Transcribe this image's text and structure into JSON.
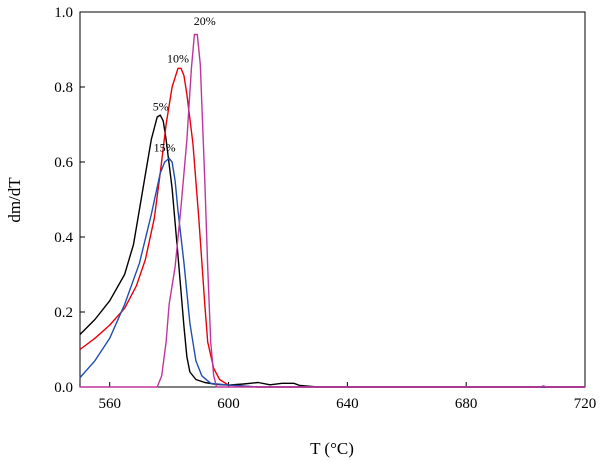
{
  "chart_data": {
    "type": "line",
    "xlabel": "T (°C)",
    "ylabel": "dm/dT",
    "xlim": [
      550,
      720
    ],
    "ylim": [
      0,
      1.0
    ],
    "x_ticks": [
      560,
      600,
      640,
      680,
      720
    ],
    "x_tick_labels": [
      "560",
      "600",
      "640",
      "680",
      "720"
    ],
    "y_ticks": [
      0.0,
      0.2,
      0.4,
      0.6,
      0.8,
      1.0
    ],
    "y_tick_labels": [
      "0.0",
      "0.2",
      "0.4",
      "0.6",
      "0.8",
      "1.0"
    ],
    "grid": false,
    "series": [
      {
        "name": "5%",
        "color": "#000000",
        "points": [
          [
            550,
            0.14
          ],
          [
            555,
            0.18
          ],
          [
            560,
            0.23
          ],
          [
            565,
            0.3
          ],
          [
            568,
            0.38
          ],
          [
            571,
            0.52
          ],
          [
            574,
            0.66
          ],
          [
            576,
            0.72
          ],
          [
            577,
            0.725
          ],
          [
            578,
            0.71
          ],
          [
            579,
            0.66
          ],
          [
            581,
            0.53
          ],
          [
            583,
            0.35
          ],
          [
            585,
            0.16
          ],
          [
            586,
            0.08
          ],
          [
            587,
            0.04
          ],
          [
            589,
            0.02
          ],
          [
            592,
            0.012
          ],
          [
            596,
            0.007
          ],
          [
            600,
            0.005
          ],
          [
            605,
            0.008
          ],
          [
            610,
            0.012
          ],
          [
            614,
            0.006
          ],
          [
            618,
            0.01
          ],
          [
            622,
            0.01
          ],
          [
            624,
            0.004
          ],
          [
            630,
            0.0
          ],
          [
            720,
            0.0
          ]
        ]
      },
      {
        "name": "10%",
        "color": "#e8000b",
        "points": [
          [
            550,
            0.1
          ],
          [
            555,
            0.13
          ],
          [
            560,
            0.165
          ],
          [
            565,
            0.21
          ],
          [
            569,
            0.27
          ],
          [
            572,
            0.34
          ],
          [
            575,
            0.45
          ],
          [
            577,
            0.57
          ],
          [
            579,
            0.7
          ],
          [
            581,
            0.8
          ],
          [
            583,
            0.85
          ],
          [
            584,
            0.85
          ],
          [
            585,
            0.83
          ],
          [
            586,
            0.78
          ],
          [
            588,
            0.65
          ],
          [
            590,
            0.45
          ],
          [
            592,
            0.22
          ],
          [
            593,
            0.12
          ],
          [
            595,
            0.05
          ],
          [
            597,
            0.02
          ],
          [
            600,
            0.005
          ],
          [
            610,
            0.0
          ],
          [
            720,
            0.0
          ]
        ]
      },
      {
        "name": "15%",
        "color": "#1f4fae",
        "points": [
          [
            550,
            0.025
          ],
          [
            555,
            0.07
          ],
          [
            560,
            0.13
          ],
          [
            565,
            0.22
          ],
          [
            570,
            0.33
          ],
          [
            574,
            0.46
          ],
          [
            577,
            0.57
          ],
          [
            578.5,
            0.6
          ],
          [
            580,
            0.61
          ],
          [
            581,
            0.6
          ],
          [
            582,
            0.55
          ],
          [
            583,
            0.47
          ],
          [
            585,
            0.33
          ],
          [
            587,
            0.17
          ],
          [
            589,
            0.07
          ],
          [
            591,
            0.03
          ],
          [
            594,
            0.01
          ],
          [
            600,
            0.005
          ],
          [
            610,
            0.0
          ],
          [
            720,
            0.0
          ]
        ]
      },
      {
        "name": "20%",
        "color": "#c0359c",
        "points": [
          [
            550,
            0.0
          ],
          [
            576,
            0.0
          ],
          [
            577.5,
            0.03
          ],
          [
            579,
            0.12
          ],
          [
            580,
            0.22
          ],
          [
            582,
            0.32
          ],
          [
            584,
            0.48
          ],
          [
            586,
            0.66
          ],
          [
            587.5,
            0.85
          ],
          [
            588.5,
            0.94
          ],
          [
            589.5,
            0.94
          ],
          [
            590.5,
            0.86
          ],
          [
            592,
            0.55
          ],
          [
            593,
            0.32
          ],
          [
            594,
            0.12
          ],
          [
            595,
            0.03
          ],
          [
            596,
            0.0
          ],
          [
            705,
            0.0
          ],
          [
            706,
            0.003
          ],
          [
            707,
            0.0
          ],
          [
            720,
            0.0
          ]
        ]
      }
    ],
    "annotations": [
      {
        "text": "5%",
        "x": 577.2,
        "y": 0.738
      },
      {
        "text": "10%",
        "x": 583,
        "y": 0.866
      },
      {
        "text": "15%",
        "x": 578.5,
        "y": 0.628
      },
      {
        "text": "20%",
        "x": 592,
        "y": 0.965
      }
    ]
  }
}
